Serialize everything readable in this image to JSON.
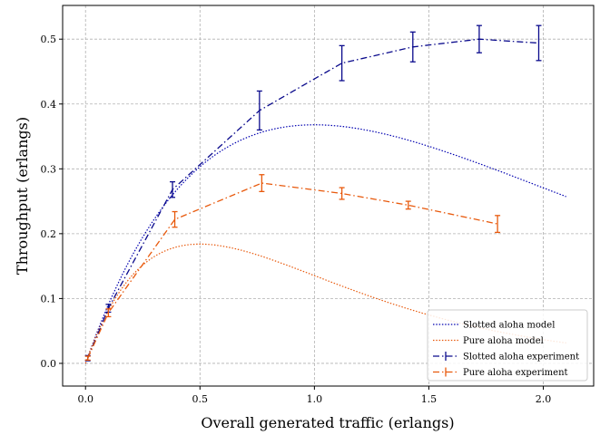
{
  "chart_data": {
    "type": "line",
    "title": "",
    "xlabel": "Overall generated traffic (erlangs)",
    "ylabel": "Throughput (erlangs)",
    "xlim": [
      -0.1,
      2.22
    ],
    "ylim": [
      -0.035,
      0.552
    ],
    "xticks": [
      "0.0",
      "0.5",
      "1.0",
      "1.5",
      "2.0"
    ],
    "xtick_values": [
      0.0,
      0.5,
      1.0,
      1.5,
      2.0
    ],
    "yticks": [
      "0.0",
      "0.1",
      "0.2",
      "0.3",
      "0.4",
      "0.5"
    ],
    "ytick_values": [
      0.0,
      0.1,
      0.2,
      0.3,
      0.4,
      0.5
    ],
    "grid": true,
    "legend_position": "lower-right",
    "models": [
      {
        "name": "Slotted aloha model",
        "color": "#0000b0",
        "formula": "G*exp(-G)",
        "x_range": [
          0.0,
          2.1
        ]
      },
      {
        "name": "Pure aloha model",
        "color": "#e8590c",
        "formula": "G*exp(-2G)",
        "x_range": [
          0.0,
          2.1
        ]
      }
    ],
    "series": [
      {
        "name": "Slotted aloha experiment",
        "color": "#0a0a8c",
        "x": [
          0.01,
          0.1,
          0.38,
          0.76,
          1.12,
          1.43,
          1.72,
          1.98
        ],
        "y": [
          0.008,
          0.085,
          0.268,
          0.39,
          0.463,
          0.488,
          0.5,
          0.494
        ],
        "err": [
          0.004,
          0.006,
          0.012,
          0.03,
          0.027,
          0.023,
          0.021,
          0.027
        ]
      },
      {
        "name": "Pure aloha experiment",
        "color": "#e8590c",
        "x": [
          0.01,
          0.1,
          0.39,
          0.77,
          1.12,
          1.41,
          1.8
        ],
        "y": [
          0.008,
          0.078,
          0.222,
          0.278,
          0.262,
          0.244,
          0.215
        ],
        "err": [
          0.003,
          0.006,
          0.012,
          0.013,
          0.009,
          0.006,
          0.013
        ]
      }
    ]
  }
}
